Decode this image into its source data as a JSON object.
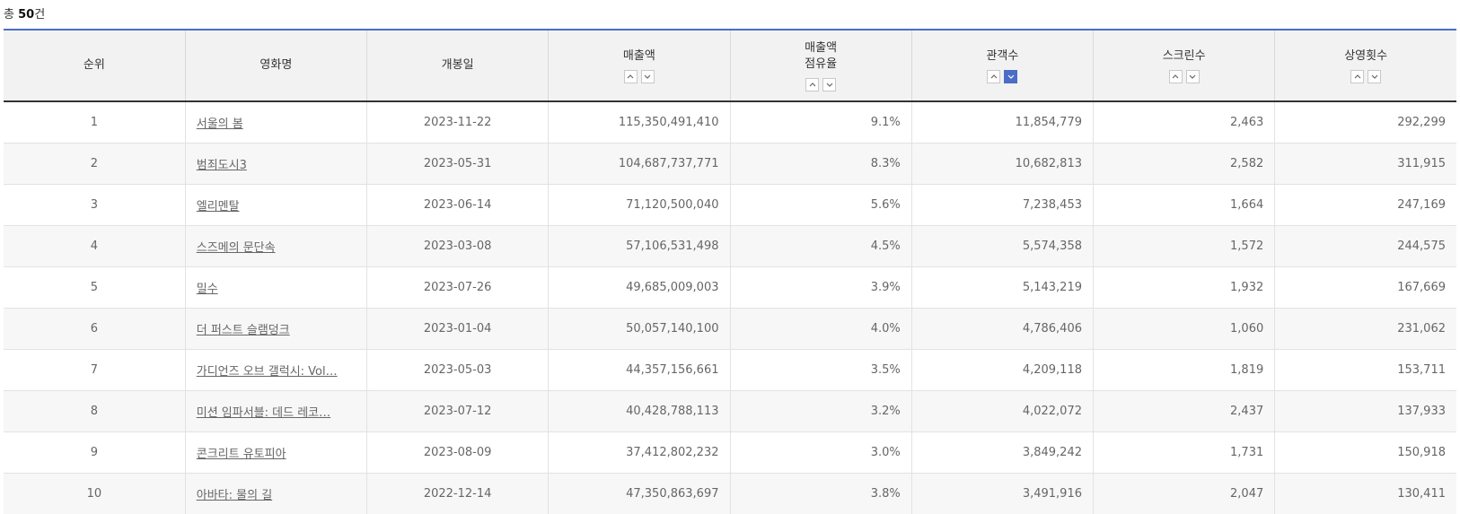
{
  "summary": {
    "prefix": "총 ",
    "count": "50",
    "suffix": "건"
  },
  "table": {
    "headers": [
      {
        "label": "순위",
        "label2": "",
        "sortable": false
      },
      {
        "label": "영화명",
        "label2": "",
        "sortable": false
      },
      {
        "label": "개봉일",
        "label2": "",
        "sortable": false
      },
      {
        "label": "매출액",
        "label2": "",
        "sortable": true,
        "active": ""
      },
      {
        "label": "매출액",
        "label2": "점유율",
        "sortable": true,
        "active": ""
      },
      {
        "label": "관객수",
        "label2": "",
        "sortable": true,
        "active": "desc"
      },
      {
        "label": "스크린수",
        "label2": "",
        "sortable": true,
        "active": ""
      },
      {
        "label": "상영횟수",
        "label2": "",
        "sortable": true,
        "active": ""
      }
    ],
    "rows": [
      {
        "rank": "1",
        "title": "서울의 봄",
        "release": "2023-11-22",
        "sales": "115,350,491,410",
        "share": "9.1%",
        "audience": "11,854,779",
        "screens": "2,463",
        "shows": "292,299"
      },
      {
        "rank": "2",
        "title": "범죄도시3",
        "release": "2023-05-31",
        "sales": "104,687,737,771",
        "share": "8.3%",
        "audience": "10,682,813",
        "screens": "2,582",
        "shows": "311,915"
      },
      {
        "rank": "3",
        "title": "엘리멘탈",
        "release": "2023-06-14",
        "sales": "71,120,500,040",
        "share": "5.6%",
        "audience": "7,238,453",
        "screens": "1,664",
        "shows": "247,169"
      },
      {
        "rank": "4",
        "title": "스즈메의 문단속",
        "release": "2023-03-08",
        "sales": "57,106,531,498",
        "share": "4.5%",
        "audience": "5,574,358",
        "screens": "1,572",
        "shows": "244,575"
      },
      {
        "rank": "5",
        "title": "밀수",
        "release": "2023-07-26",
        "sales": "49,685,009,003",
        "share": "3.9%",
        "audience": "5,143,219",
        "screens": "1,932",
        "shows": "167,669"
      },
      {
        "rank": "6",
        "title": "더 퍼스트 슬램덩크",
        "release": "2023-01-04",
        "sales": "50,057,140,100",
        "share": "4.0%",
        "audience": "4,786,406",
        "screens": "1,060",
        "shows": "231,062"
      },
      {
        "rank": "7",
        "title": "가디언즈 오브 갤럭시: Vol…",
        "release": "2023-05-03",
        "sales": "44,357,156,661",
        "share": "3.5%",
        "audience": "4,209,118",
        "screens": "1,819",
        "shows": "153,711"
      },
      {
        "rank": "8",
        "title": "미션 임파서블: 데드 레코…",
        "release": "2023-07-12",
        "sales": "40,428,788,113",
        "share": "3.2%",
        "audience": "4,022,072",
        "screens": "2,437",
        "shows": "137,933"
      },
      {
        "rank": "9",
        "title": "콘크리트 유토피아",
        "release": "2023-08-09",
        "sales": "37,412,802,232",
        "share": "3.0%",
        "audience": "3,849,242",
        "screens": "1,731",
        "shows": "150,918"
      },
      {
        "rank": "10",
        "title": "아바타: 물의 길",
        "release": "2022-12-14",
        "sales": "47,350,863,697",
        "share": "3.8%",
        "audience": "3,491,916",
        "screens": "2,047",
        "shows": "130,411"
      }
    ]
  },
  "icons": {
    "sort_up": "chevron-up-icon",
    "sort_down": "chevron-down-icon"
  },
  "colors": {
    "accent": "#4b6cc7",
    "header_bg": "#f2f2f2",
    "stripe_bg": "#f7f7f7"
  }
}
